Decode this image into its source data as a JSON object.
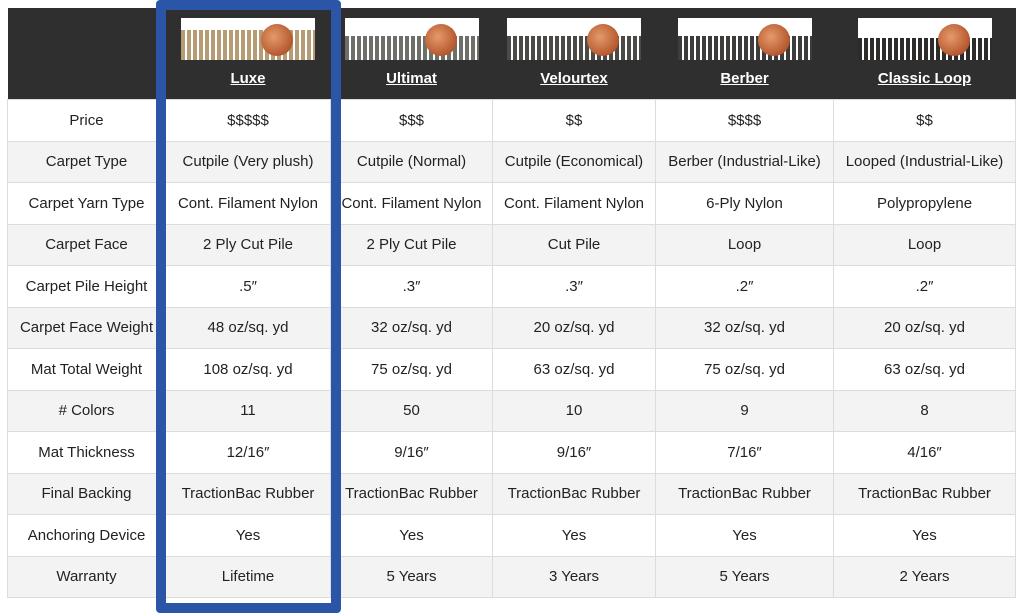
{
  "columns": [
    {
      "name": "Luxe",
      "swatch": "#b59c74"
    },
    {
      "name": "Ultimat",
      "swatch": "#6f6f6a"
    },
    {
      "name": "Velourtex",
      "swatch": "#4c4a47"
    },
    {
      "name": "Berber",
      "swatch": "#3e3c3a"
    },
    {
      "name": "Classic Loop",
      "swatch": "#2e2c2a"
    }
  ],
  "highlight_color": "#2b56a8",
  "rows": [
    {
      "label": "Price",
      "values": [
        "$$$$$",
        "$$$",
        "$$",
        "$$$$",
        "$$"
      ]
    },
    {
      "label": "Carpet Type",
      "values": [
        "Cutpile (Very plush)",
        "Cutpile (Normal)",
        "Cutpile (Economical)",
        "Berber (Industrial-Like)",
        "Looped (Industrial-Like)"
      ]
    },
    {
      "label": "Carpet Yarn Type",
      "values": [
        "Cont. Filament Nylon",
        "Cont. Filament Nylon",
        "Cont. Filament Nylon",
        "6-Ply Nylon",
        "Polypropylene"
      ]
    },
    {
      "label": "Carpet Face",
      "values": [
        "2 Ply Cut Pile",
        "2 Ply Cut Pile",
        "Cut Pile",
        "Loop",
        "Loop"
      ]
    },
    {
      "label": "Carpet Pile Height",
      "values": [
        ".5″",
        ".3″",
        ".3″",
        ".2″",
        ".2″"
      ]
    },
    {
      "label": "Carpet Face Weight",
      "values": [
        "48 oz/sq. yd",
        "32 oz/sq. yd",
        "20 oz/sq. yd",
        "32 oz/sq. yd",
        "20 oz/sq. yd"
      ]
    },
    {
      "label": "Mat Total Weight",
      "values": [
        "108 oz/sq. yd",
        "75 oz/sq. yd",
        "63 oz/sq. yd",
        "75 oz/sq. yd",
        "63 oz/sq. yd"
      ]
    },
    {
      "label": "# Colors",
      "values": [
        "11",
        "50",
        "10",
        "9",
        "8"
      ]
    },
    {
      "label": "Mat Thickness",
      "values": [
        "12/16″",
        "9/16″",
        "9/16″",
        "7/16″",
        "4/16″"
      ]
    },
    {
      "label": "Final Backing",
      "values": [
        "TractionBac Rubber",
        "TractionBac Rubber",
        "TractionBac Rubber",
        "TractionBac Rubber",
        "TractionBac Rubber"
      ]
    },
    {
      "label": "Anchoring Device",
      "values": [
        "Yes",
        "Yes",
        "Yes",
        "Yes",
        "Yes"
      ]
    },
    {
      "label": "Warranty",
      "values": [
        "Lifetime",
        "5 Years",
        "3 Years",
        "5 Years",
        "2 Years"
      ]
    }
  ]
}
